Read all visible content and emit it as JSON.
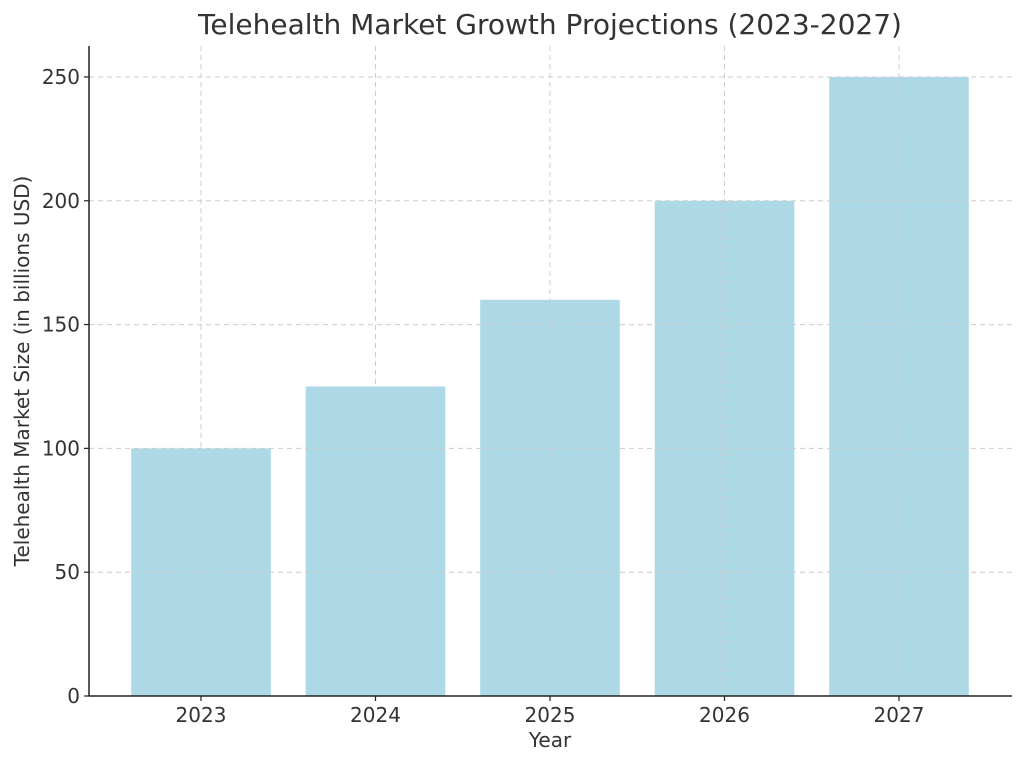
{
  "chart_data": {
    "type": "bar",
    "title": "Telehealth Market Growth Projections (2023-2027)",
    "xlabel": "Year",
    "ylabel": "Telehealth Market Size (in billions USD)",
    "categories": [
      "2023",
      "2024",
      "2025",
      "2026",
      "2027"
    ],
    "values": [
      100,
      125,
      160,
      200,
      250
    ],
    "ylim": [
      0,
      262.5
    ],
    "yticks": [
      0,
      50,
      100,
      150,
      200,
      250
    ],
    "grid": true,
    "bar_color": "#add8e6"
  }
}
